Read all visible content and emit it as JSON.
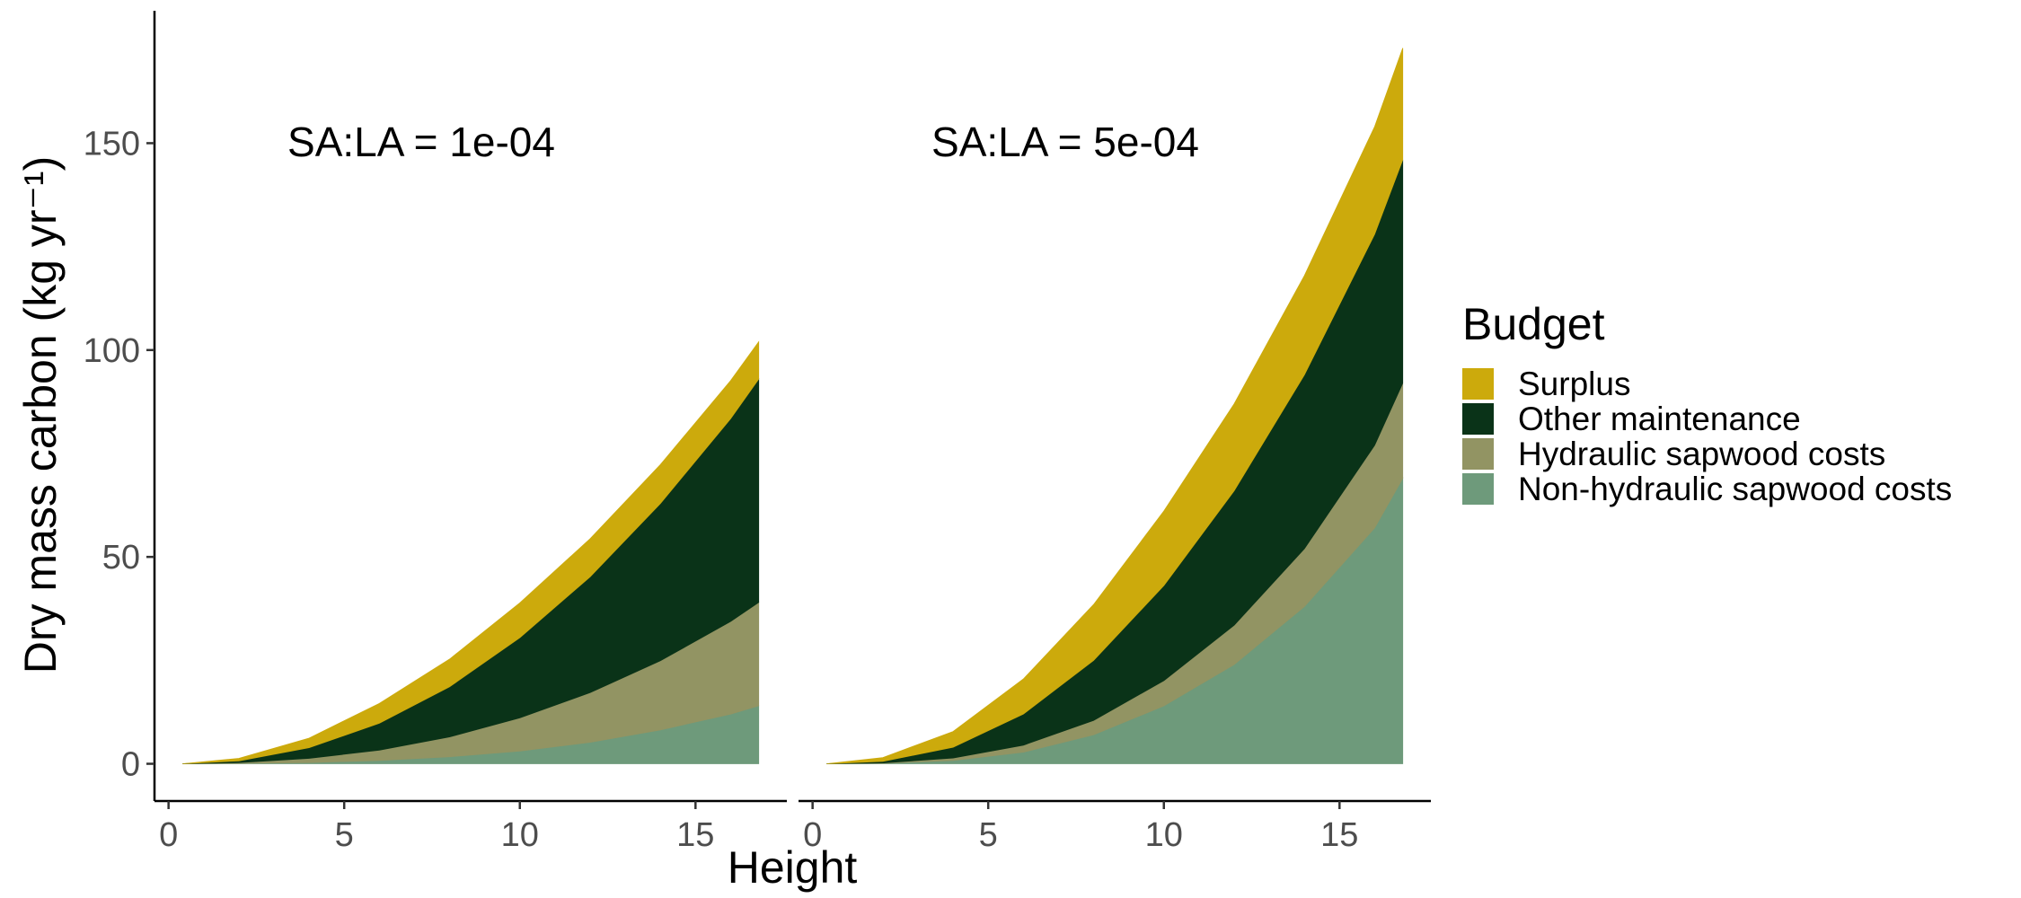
{
  "chart_data": {
    "type": "area",
    "stacked": true,
    "xlabel": "Height",
    "ylabel": "Dry mass carbon (kg yr⁻¹)",
    "xlim": [
      -0.4,
      17.6
    ],
    "ylim": [
      -9,
      182
    ],
    "x_ticks": [
      0,
      5,
      10,
      15
    ],
    "y_ticks": [
      0,
      50,
      100,
      150
    ],
    "grid": false,
    "legend": {
      "title": "Budget",
      "position": "right",
      "entries": [
        {
          "name": "Surplus",
          "color": "#CCAA0C"
        },
        {
          "name": "Other maintenance",
          "color": "#0A3318"
        },
        {
          "name": "Hydraulic sapwood costs",
          "color": "#929463"
        },
        {
          "name": "Non-hydraulic sapwood costs",
          "color": "#6E9A7B"
        }
      ]
    },
    "panels": [
      {
        "label": "SA:LA =  1e-04",
        "x": [
          0.4,
          2,
          4,
          6,
          8,
          10,
          12,
          14,
          16,
          16.8
        ],
        "stack_order": [
          "Non-hydraulic sapwood costs",
          "Hydraulic sapwood costs",
          "Other maintenance",
          "Surplus"
        ],
        "series": [
          {
            "name": "Non-hydraulic sapwood costs",
            "values": [
              0,
              0.1,
              0.3,
              0.8,
              1.7,
              3.1,
              5.2,
              8.2,
              12.0,
              14.0
            ]
          },
          {
            "name": "Hydraulic sapwood costs",
            "values": [
              0,
              0.2,
              1.0,
              2.5,
              4.8,
              8.0,
              12.0,
              16.7,
              22.4,
              25.0
            ]
          },
          {
            "name": "Other maintenance",
            "values": [
              0,
              0.4,
              2.6,
              6.5,
              12.1,
              19.4,
              28.0,
              38.0,
              49.0,
              54.0
            ]
          },
          {
            "name": "Surplus",
            "values": [
              0,
              0.6,
              2.3,
              4.8,
              6.7,
              8.4,
              9.2,
              9.4,
              9.2,
              9.0
            ]
          }
        ]
      },
      {
        "label": "SA:LA =  5e-04",
        "x": [
          0.4,
          2,
          4,
          6,
          8,
          10,
          12,
          14,
          16,
          16.8
        ],
        "stack_order": [
          "Non-hydraulic sapwood costs",
          "Hydraulic sapwood costs",
          "Other maintenance",
          "Surplus"
        ],
        "series": [
          {
            "name": "Non-hydraulic sapwood costs",
            "values": [
              0,
              0.1,
              0.8,
              2.8,
              7.0,
              14.0,
              24.0,
              38.0,
              57.0,
              69.0
            ]
          },
          {
            "name": "Hydraulic sapwood costs",
            "values": [
              0,
              0.1,
              0.6,
              1.7,
              3.5,
              6.1,
              9.5,
              14.0,
              20.0,
              23.0
            ]
          },
          {
            "name": "Other maintenance",
            "values": [
              0,
              0.4,
              2.6,
              7.5,
              14.5,
              23.0,
              32.5,
              42.0,
              51.0,
              54.0
            ]
          },
          {
            "name": "Surplus",
            "values": [
              0,
              0.9,
              3.8,
              8.5,
              13.5,
              18.0,
              21.0,
              24.0,
              26.0,
              27.0
            ]
          }
        ]
      }
    ]
  }
}
